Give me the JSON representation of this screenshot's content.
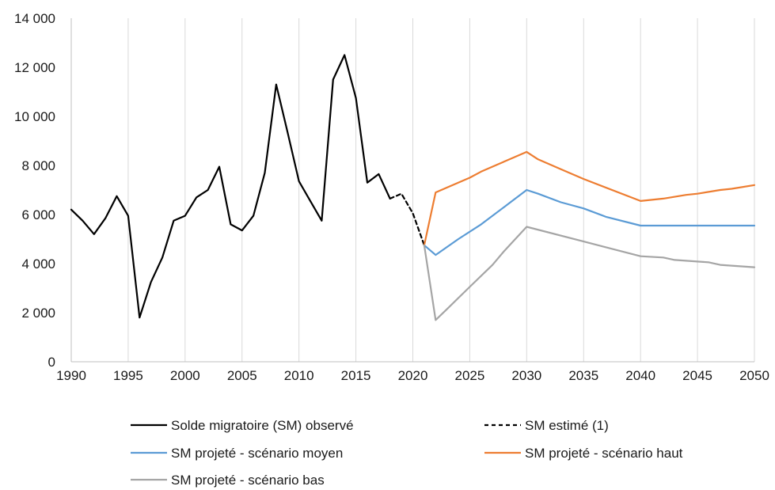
{
  "chart_data": {
    "type": "line",
    "title": "",
    "xlabel": "",
    "ylabel": "",
    "xlim": [
      1990,
      2050
    ],
    "ylim": [
      0,
      14000
    ],
    "x_ticks": [
      1990,
      1995,
      2000,
      2005,
      2010,
      2015,
      2020,
      2025,
      2030,
      2035,
      2040,
      2045,
      2050
    ],
    "x_tick_labels": [
      "1990",
      "1995",
      "2000",
      "2005",
      "2010",
      "2015",
      "2020",
      "2025",
      "2030",
      "2035",
      "2040",
      "2045",
      "2050"
    ],
    "y_ticks": [
      0,
      2000,
      4000,
      6000,
      8000,
      10000,
      12000,
      14000
    ],
    "y_tick_labels": [
      "0",
      "2 000",
      "4 000",
      "6 000",
      "8 000",
      "10 000",
      "12 000",
      "14 000"
    ],
    "grid": "vertical",
    "legend_position": "bottom",
    "series": [
      {
        "name": "Solde migratoire (SM) observé",
        "color": "#000000",
        "dash": "solid",
        "points": [
          [
            1990,
            6200
          ],
          [
            1991,
            5750
          ],
          [
            1992,
            5200
          ],
          [
            1993,
            5850
          ],
          [
            1994,
            6750
          ],
          [
            1995,
            5950
          ],
          [
            1996,
            1800
          ],
          [
            1997,
            3250
          ],
          [
            1998,
            4250
          ],
          [
            1999,
            5750
          ],
          [
            2000,
            5950
          ],
          [
            2001,
            6700
          ],
          [
            2002,
            7000
          ],
          [
            2003,
            7950
          ],
          [
            2004,
            5600
          ],
          [
            2005,
            5350
          ],
          [
            2006,
            5950
          ],
          [
            2007,
            7700
          ],
          [
            2008,
            11300
          ],
          [
            2009,
            9350
          ],
          [
            2010,
            7350
          ],
          [
            2011,
            6550
          ],
          [
            2012,
            5750
          ],
          [
            2013,
            11500
          ],
          [
            2014,
            12500
          ],
          [
            2015,
            10750
          ],
          [
            2016,
            7300
          ],
          [
            2017,
            7650
          ],
          [
            2018,
            6650
          ]
        ]
      },
      {
        "name": "SM estimé (1)",
        "color": "#000000",
        "dash": "dashed",
        "points": [
          [
            2018,
            6650
          ],
          [
            2019,
            6850
          ],
          [
            2020,
            6050
          ],
          [
            2021,
            4750
          ]
        ]
      },
      {
        "name": "SM projeté - scénario moyen",
        "color": "#5b9bd5",
        "dash": "solid",
        "points": [
          [
            2021,
            4750
          ],
          [
            2022,
            4350
          ],
          [
            2024,
            5000
          ],
          [
            2026,
            5600
          ],
          [
            2028,
            6300
          ],
          [
            2030,
            7000
          ],
          [
            2031,
            6850
          ],
          [
            2033,
            6500
          ],
          [
            2035,
            6250
          ],
          [
            2037,
            5900
          ],
          [
            2040,
            5550
          ],
          [
            2045,
            5550
          ],
          [
            2050,
            5550
          ]
        ]
      },
      {
        "name": "SM projeté - scénario haut",
        "color": "#ed7d31",
        "dash": "solid",
        "points": [
          [
            2021,
            4750
          ],
          [
            2022,
            6900
          ],
          [
            2023,
            7100
          ],
          [
            2025,
            7500
          ],
          [
            2026,
            7750
          ],
          [
            2028,
            8150
          ],
          [
            2030,
            8550
          ],
          [
            2031,
            8250
          ],
          [
            2033,
            7850
          ],
          [
            2035,
            7450
          ],
          [
            2040,
            6550
          ],
          [
            2042,
            6650
          ],
          [
            2044,
            6800
          ],
          [
            2045,
            6850
          ],
          [
            2047,
            7000
          ],
          [
            2048,
            7050
          ],
          [
            2050,
            7200
          ]
        ]
      },
      {
        "name": "SM projeté - scénario bas",
        "color": "#a5a5a5",
        "dash": "solid",
        "points": [
          [
            2021,
            4750
          ],
          [
            2022,
            1700
          ],
          [
            2023,
            2150
          ],
          [
            2025,
            3050
          ],
          [
            2027,
            3950
          ],
          [
            2028,
            4500
          ],
          [
            2030,
            5500
          ],
          [
            2035,
            4900
          ],
          [
            2040,
            4300
          ],
          [
            2042,
            4250
          ],
          [
            2043,
            4150
          ],
          [
            2046,
            4050
          ],
          [
            2047,
            3950
          ],
          [
            2050,
            3850
          ]
        ]
      }
    ]
  }
}
